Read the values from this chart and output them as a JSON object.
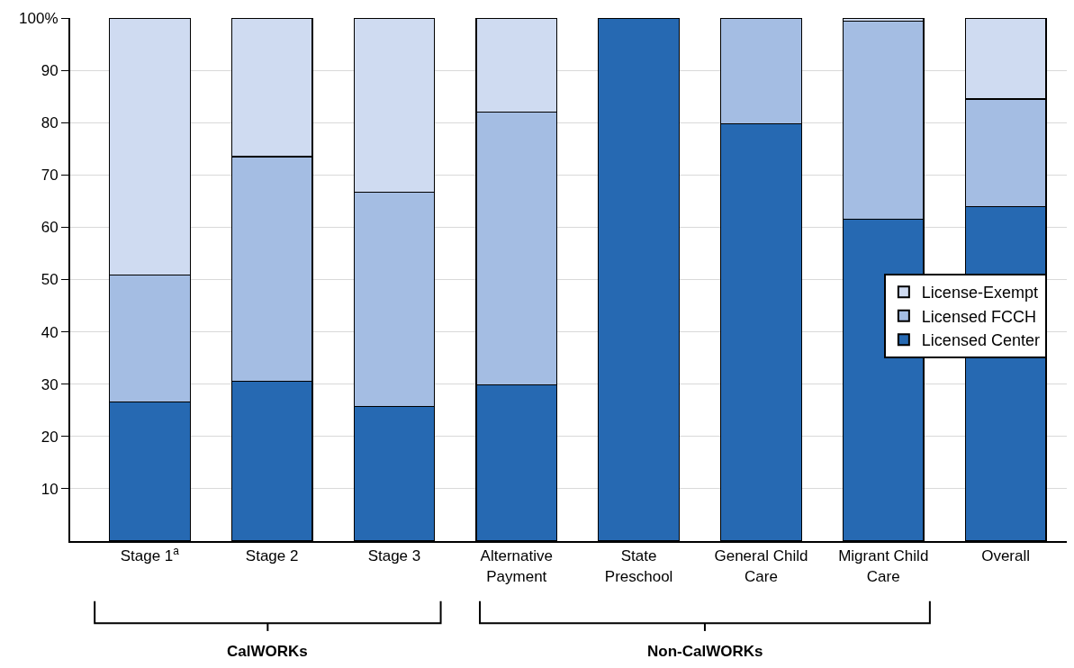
{
  "chart_data": {
    "type": "bar",
    "stacked": true,
    "categories": [
      "Stage 1$^{a}$",
      "Stage 2",
      "Stage 3",
      "Alternative\nPayment",
      "State\nPreschool",
      "General Child\nCare",
      "Migrant Child\nCare",
      "Overall"
    ],
    "series": [
      {
        "name": "Licensed Center",
        "color": "#2669b2",
        "values": [
          26.6,
          30.6,
          25.7,
          29.8,
          100,
          79.8,
          61.5,
          63.9
        ]
      },
      {
        "name": "Licensed FCCH",
        "color": "#a4bde3",
        "values": [
          24.3,
          42.9,
          41.0,
          52.2,
          null,
          20.2,
          37.9,
          20.6
        ]
      },
      {
        "name": "License-Exempt",
        "color": "#cfdbf1",
        "values": [
          49.1,
          26.5,
          33.3,
          18.0,
          null,
          null,
          0.6,
          15.5
        ]
      }
    ],
    "ylim": [
      0,
      100
    ],
    "yticks": [
      10,
      20,
      30,
      40,
      50,
      60,
      70,
      80,
      90,
      {
        "value": 100,
        "label": "100%"
      }
    ],
    "grid": "y",
    "legend": "right",
    "annotations": [
      "CalWORKs",
      "Non-CalWORKs"
    ]
  }
}
